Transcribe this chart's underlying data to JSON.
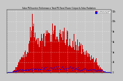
{
  "title": "Solar PV/Inverter Performance Total PV Panel Power Output & Solar Radiation",
  "bg_color": "#c8c8c8",
  "plot_bg_color": "#c8c8c8",
  "bar_color": "#cc0000",
  "dot_color": "#0000ee",
  "n_points": 365,
  "ylim_max": 12000,
  "y_ticks": [
    0,
    2000,
    4000,
    6000,
    8000,
    10000,
    12000
  ],
  "y_tick_labels": [
    "0",
    "2k",
    "4k",
    "6k",
    "8k",
    "10k",
    "12k"
  ],
  "legend_pv": "PV Panel Output",
  "legend_solar": "Solar Radiation",
  "grid_color": "#aaaaaa",
  "title_color": "#000000",
  "tick_color": "#000000"
}
